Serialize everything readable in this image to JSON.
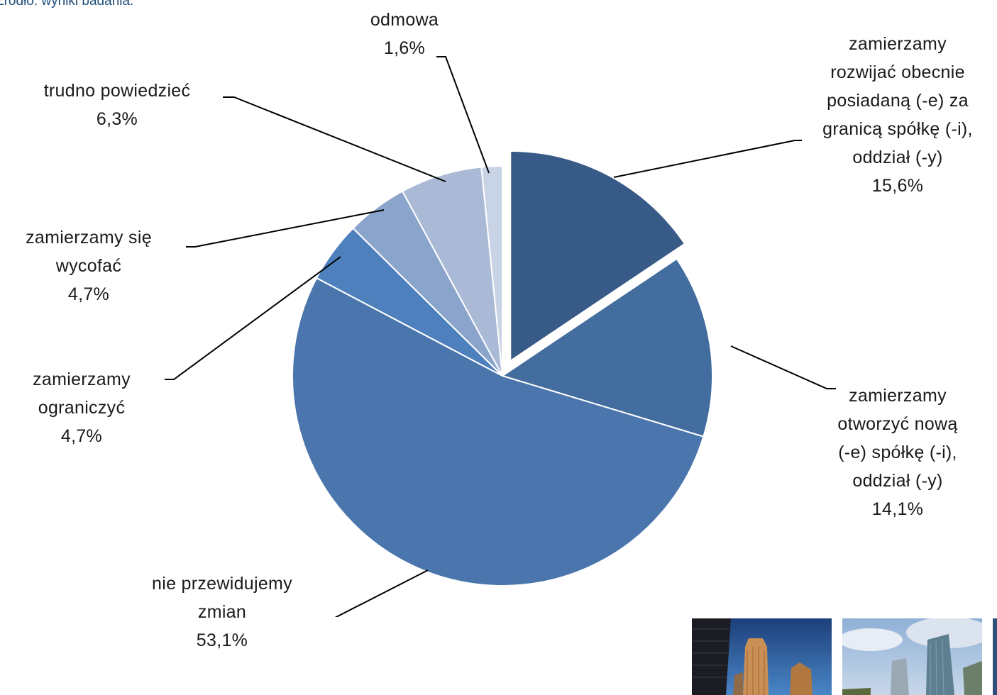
{
  "source_note": "Źródło: wyniki badania.",
  "chart_data": {
    "type": "pie",
    "unit": "%",
    "exploded_index": 0,
    "slices": [
      {
        "label_lines": [
          "zamierzamy",
          "rozwijać obecnie",
          "posiadaną (-e) za",
          "granicą spółkę (-i),",
          "oddział (-y)"
        ],
        "value": 15.6,
        "value_label": "15,6%",
        "color": "#375a87"
      },
      {
        "label_lines": [
          "zamierzamy",
          "otworzyć nową",
          "(-e) spółkę (-i),",
          "oddział (-y)"
        ],
        "value": 14.1,
        "value_label": "14,1%",
        "color": "#426d9e"
      },
      {
        "label_lines": [
          "nie przewidujemy",
          "zmian"
        ],
        "value": 53.1,
        "value_label": "53,1%",
        "color": "#4a76ad"
      },
      {
        "label_lines": [
          "zamierzamy",
          "ograniczyć"
        ],
        "value": 4.7,
        "value_label": "4,7%",
        "color": "#4e80bd"
      },
      {
        "label_lines": [
          "zamierzamy się",
          "wycofać"
        ],
        "value": 4.7,
        "value_label": "4,7%",
        "color": "#8aa4cb"
      },
      {
        "label_lines": [
          "trudno powiedzieć"
        ],
        "value": 6.3,
        "value_label": "6,3%",
        "color": "#aab9d6"
      },
      {
        "label_lines": [
          "odmowa"
        ],
        "value": 1.6,
        "value_label": "1,6%",
        "color": "#c8d3e6"
      }
    ]
  },
  "photos": [
    {
      "icon": "skyscrapers-photo-1"
    },
    {
      "icon": "skyscrapers-photo-2"
    },
    {
      "icon": "skyscrapers-photo-3"
    }
  ]
}
